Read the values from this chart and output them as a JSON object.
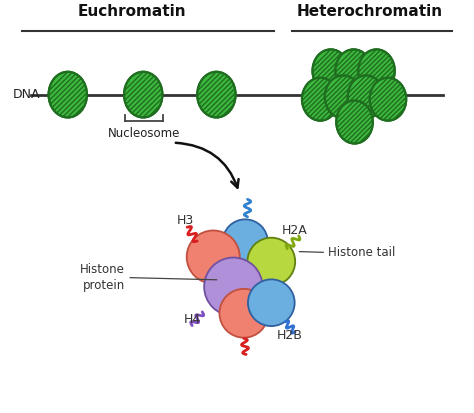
{
  "title_euchromatin": "Euchromatin",
  "title_heterochromatin": "Heterochromatin",
  "label_dna": "DNA",
  "label_nucleosome": "Nucleosome",
  "label_histone_protein": "Histone\nprotein",
  "label_histone_tail": "Histone tail",
  "label_h3": "H3",
  "label_h2a": "H2A",
  "label_h4": "H4",
  "label_h2b": "H2B",
  "bg_color": "#ffffff",
  "nucleosome_fill": "#3db83e",
  "nucleosome_edge": "#1f6e1f",
  "dna_line_color": "#333333",
  "histone_h3_fill": "#f08070",
  "histone_h3_edge": "#c05040",
  "histone_blue_fill": "#6aafe0",
  "histone_blue_edge": "#3060a0",
  "histone_h2a_fill": "#b8d840",
  "histone_h2a_edge": "#608010",
  "histone_purple_fill": "#b090d8",
  "histone_purple_edge": "#7050a0",
  "histone_red_fill": "#f08070",
  "histone_red_edge": "#c05040",
  "histone_h2b_fill": "#6aafe0",
  "histone_h2b_edge": "#3060a0",
  "tail_h3_color": "#d82020",
  "tail_h2a_color": "#80a810",
  "tail_h4_color": "#8050c0",
  "tail_h2b_color": "#3070d0",
  "tail_blue_top_color": "#3080d0",
  "arrow_color": "#111111",
  "line_color_bracket": "#444444",
  "header_line_color": "#333333",
  "label_line_color": "#444444"
}
